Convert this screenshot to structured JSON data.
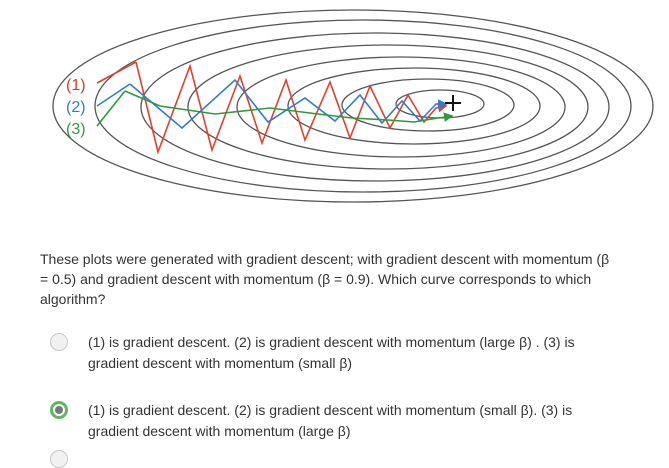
{
  "figure": {
    "labels": [
      {
        "text": "(1)",
        "color": "#d63a2a"
      },
      {
        "text": "(2)",
        "color": "#2f7dd1"
      },
      {
        "text": "(3)",
        "color": "#2e9a3a"
      }
    ],
    "colors": {
      "contour": "#555555",
      "curve1": "#e0402e",
      "curve2": "#2f7dd1",
      "curve3": "#2e9a3a",
      "optimum": "#111111"
    }
  },
  "question": {
    "text": "These plots were generated with gradient descent; with gradient descent with momentum (β = 0.5) and gradient descent with momentum (β = 0.9). Which curve corresponds to which algorithm?"
  },
  "options": [
    {
      "text": "(1) is gradient descent. (2) is gradient descent with momentum (large β) . (3) is gradient descent with momentum (small β)",
      "selected": false
    },
    {
      "text": "(1) is gradient descent. (2) is gradient descent with momentum (small β). (3) is gradient descent with momentum (large β)",
      "selected": true
    }
  ]
}
